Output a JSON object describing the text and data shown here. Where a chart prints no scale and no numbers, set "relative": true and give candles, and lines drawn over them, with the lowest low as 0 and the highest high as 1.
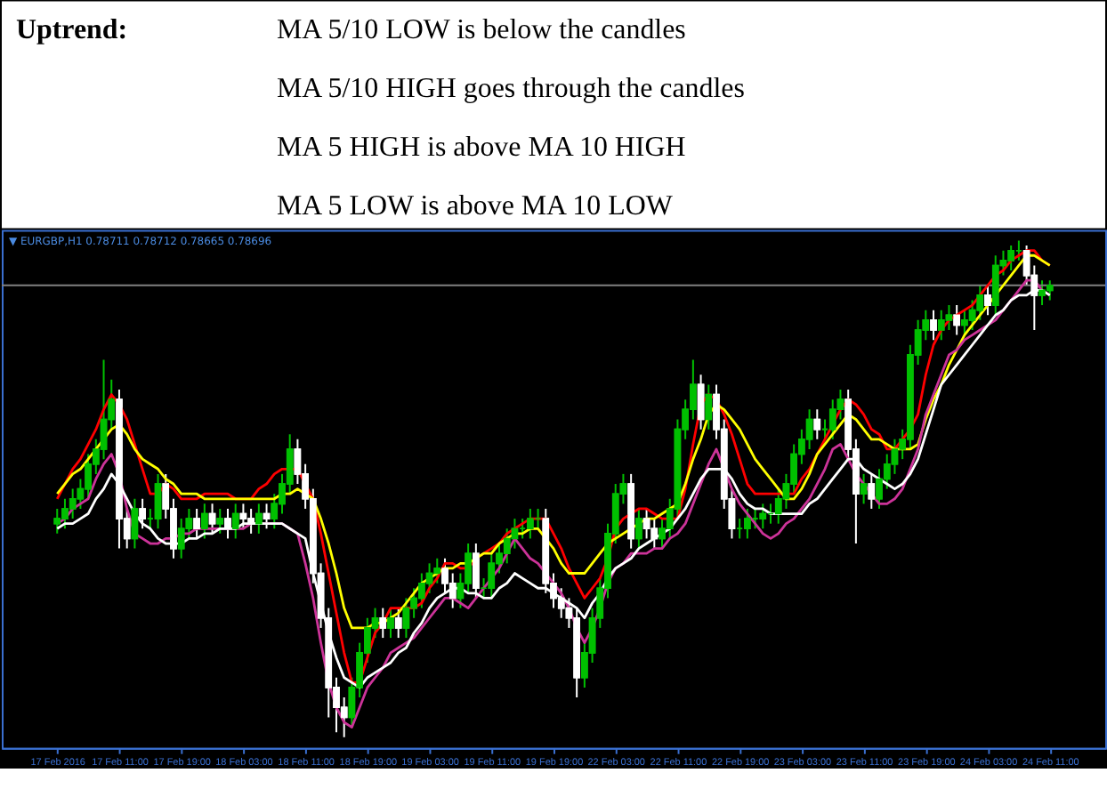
{
  "chart_data": {
    "type": "candlestick",
    "title": "Uptrend:",
    "annotations": [
      "MA 5/10 LOW is below the candles",
      "MA 5/10 HIGH goes through the candles",
      "MA 5 HIGH is above MA 10 HIGH",
      "MA 5 LOW is above MA 10 LOW",
      "▼ EURGBP,H1  0.78711 0.78712 0.78665 0.78696"
    ],
    "relative": true,
    "grid": false,
    "marker": "none",
    "line_style": "solid",
    "colors": [
      "#00c000",
      "#00c000",
      "#00c000",
      "#00c000",
      "#00c000",
      "#00c000",
      "#00c000",
      "#00c000",
      "#ffffff",
      "#ffffff",
      "#00c000",
      "#ffffff",
      "#00c000",
      "#00c000",
      "#ffffff",
      "#ffffff",
      "#00c000",
      "#00c000",
      "#ffffff",
      "#00c000",
      "#ffffff",
      "#00c000",
      "#ffffff",
      "#00c000",
      "#ffffff",
      "#ffffff",
      "#00c000",
      "#ffffff",
      "#00c000",
      "#00c000",
      "#00c000",
      "#ffffff",
      "#ffffff",
      "#ffffff",
      "#ffffff",
      "#ffffff",
      "#ffffff",
      "#ffffff",
      "#00c000",
      "#00c000",
      "#00c000",
      "#00c000",
      "#ffffff",
      "#00c000",
      "#ffffff",
      "#00c000",
      "#00c000",
      "#00c000",
      "#00c000",
      "#00c000",
      "#ffffff",
      "#ffffff",
      "#00c000",
      "#00c000",
      "#ffffff",
      "#00c000",
      "#00c000",
      "#00c000",
      "#00c000",
      "#00c000",
      "#00c000",
      "#00c000",
      "#00c000",
      "#ffffff",
      "#ffffff",
      "#ffffff",
      "#ffffff",
      "#ffffff",
      "#00c000",
      "#00c000",
      "#00c000",
      "#00c000",
      "#00c000",
      "#00c000",
      "#ffffff",
      "#00c000",
      "#ffffff",
      "#ffffff",
      "#00c000",
      "#00c000",
      "#00c000",
      "#00c000",
      "#00c000",
      "#ffffff",
      "#00c000",
      "#ffffff",
      "#ffffff",
      "#ffffff",
      "#00c000",
      "#00c000",
      "#00c000",
      "#00c000",
      "#00c000",
      "#00c000",
      "#00c000",
      "#00c000",
      "#00c000",
      "#00c000",
      "#ffffff",
      "#00c000",
      "#00c000",
      "#00c000",
      "#ffffff",
      "#ffffff",
      "#00c000",
      "#ffffff",
      "#00c000",
      "#00c000",
      "#00c000",
      "#00c000",
      "#00c000",
      "#00c000",
      "#00c000",
      "#ffffff",
      "#00c000",
      "#00c000",
      "#ffffff",
      "#00c000",
      "#00c000",
      "#00c000",
      "#ffffff",
      "#00c000",
      "#00c000",
      "#00c000",
      "#00c000",
      "#ffffff",
      "#ffffff",
      "#00c000",
      "#00c000"
    ],
    "categories": [
      "17 Feb 2016",
      null,
      null,
      null,
      null,
      null,
      null,
      null,
      "17 Feb 11:00",
      null,
      null,
      null,
      null,
      null,
      null,
      null,
      "17 Feb 19:00",
      null,
      null,
      null,
      null,
      null,
      null,
      null,
      "18 Feb 03:00",
      null,
      null,
      null,
      null,
      null,
      null,
      null,
      "18 Feb 11:00",
      null,
      null,
      null,
      null,
      null,
      null,
      null,
      "18 Feb 19:00",
      null,
      null,
      null,
      null,
      null,
      null,
      null,
      "19 Feb 03:00",
      null,
      null,
      null,
      null,
      null,
      null,
      null,
      "19 Feb 11:00",
      null,
      null,
      null,
      null,
      null,
      null,
      null,
      "19 Feb 19:00",
      null,
      null,
      null,
      null,
      null,
      null,
      null,
      "22 Feb 03:00",
      null,
      null,
      null,
      null,
      null,
      null,
      null,
      "22 Feb 11:00",
      null,
      null,
      null,
      null,
      null,
      null,
      null,
      "22 Feb 19:00",
      null,
      null,
      null,
      null,
      null,
      null,
      null,
      "23 Feb 03:00",
      null,
      null,
      null,
      null,
      null,
      null,
      null,
      "23 Feb 11:00",
      null,
      null,
      null,
      null,
      null,
      null,
      null,
      "23 Feb 19:00",
      null,
      null,
      null,
      null,
      null,
      null,
      null,
      "24 Feb 03:00",
      null,
      null,
      null,
      null,
      null,
      null,
      null,
      "24 Feb 11:00"
    ],
    "ref_lines": [
      {
        "axis": "y",
        "value": 0.91,
        "color": "#808080"
      }
    ],
    "ohlc": [
      [
        0.43,
        0.46,
        0.41,
        0.44
      ],
      [
        0.44,
        0.48,
        0.42,
        0.46
      ],
      [
        0.46,
        0.5,
        0.44,
        0.48
      ],
      [
        0.48,
        0.52,
        0.46,
        0.5
      ],
      [
        0.5,
        0.57,
        0.48,
        0.55
      ],
      [
        0.55,
        0.6,
        0.53,
        0.58
      ],
      [
        0.58,
        0.76,
        0.56,
        0.64
      ],
      [
        0.64,
        0.72,
        0.62,
        0.68
      ],
      [
        0.68,
        0.7,
        0.38,
        0.44
      ],
      [
        0.44,
        0.46,
        0.38,
        0.4
      ],
      [
        0.4,
        0.48,
        0.38,
        0.46
      ],
      [
        0.46,
        0.48,
        0.42,
        0.44
      ],
      [
        0.44,
        0.46,
        0.42,
        0.44
      ],
      [
        0.44,
        0.53,
        0.42,
        0.51
      ],
      [
        0.51,
        0.53,
        0.44,
        0.46
      ],
      [
        0.46,
        0.48,
        0.36,
        0.38
      ],
      [
        0.38,
        0.44,
        0.36,
        0.42
      ],
      [
        0.42,
        0.46,
        0.4,
        0.44
      ],
      [
        0.44,
        0.46,
        0.4,
        0.42
      ],
      [
        0.42,
        0.47,
        0.4,
        0.45
      ],
      [
        0.45,
        0.47,
        0.41,
        0.43
      ],
      [
        0.43,
        0.46,
        0.41,
        0.44
      ],
      [
        0.44,
        0.46,
        0.4,
        0.42
      ],
      [
        0.42,
        0.47,
        0.4,
        0.45
      ],
      [
        0.45,
        0.47,
        0.42,
        0.44
      ],
      [
        0.44,
        0.46,
        0.41,
        0.43
      ],
      [
        0.43,
        0.47,
        0.41,
        0.45
      ],
      [
        0.45,
        0.47,
        0.42,
        0.44
      ],
      [
        0.44,
        0.49,
        0.42,
        0.47
      ],
      [
        0.47,
        0.53,
        0.45,
        0.51
      ],
      [
        0.51,
        0.61,
        0.49,
        0.58
      ],
      [
        0.58,
        0.6,
        0.51,
        0.53
      ],
      [
        0.53,
        0.55,
        0.46,
        0.48
      ],
      [
        0.48,
        0.5,
        0.31,
        0.33
      ],
      [
        0.33,
        0.35,
        0.22,
        0.24
      ],
      [
        0.24,
        0.26,
        0.04,
        0.1
      ],
      [
        0.1,
        0.12,
        0.01,
        0.06
      ],
      [
        0.06,
        0.08,
        0,
        0.04
      ],
      [
        0.04,
        0.12,
        0.02,
        0.1
      ],
      [
        0.1,
        0.19,
        0.08,
        0.17
      ],
      [
        0.17,
        0.24,
        0.15,
        0.22
      ],
      [
        0.22,
        0.26,
        0.2,
        0.24
      ],
      [
        0.24,
        0.26,
        0.2,
        0.22
      ],
      [
        0.22,
        0.26,
        0.2,
        0.24
      ],
      [
        0.24,
        0.26,
        0.2,
        0.22
      ],
      [
        0.22,
        0.28,
        0.2,
        0.26
      ],
      [
        0.26,
        0.3,
        0.24,
        0.28
      ],
      [
        0.28,
        0.33,
        0.26,
        0.31
      ],
      [
        0.31,
        0.35,
        0.29,
        0.33
      ],
      [
        0.33,
        0.36,
        0.31,
        0.34
      ],
      [
        0.34,
        0.36,
        0.29,
        0.31
      ],
      [
        0.31,
        0.33,
        0.26,
        0.28
      ],
      [
        0.28,
        0.33,
        0.26,
        0.31
      ],
      [
        0.31,
        0.39,
        0.29,
        0.37
      ],
      [
        0.37,
        0.39,
        0.28,
        0.3
      ],
      [
        0.3,
        0.32,
        0.28,
        0.3
      ],
      [
        0.3,
        0.37,
        0.28,
        0.35
      ],
      [
        0.35,
        0.39,
        0.33,
        0.37
      ],
      [
        0.37,
        0.42,
        0.35,
        0.4
      ],
      [
        0.4,
        0.44,
        0.38,
        0.42
      ],
      [
        0.42,
        0.44,
        0.4,
        0.42
      ],
      [
        0.42,
        0.46,
        0.4,
        0.44
      ],
      [
        0.44,
        0.46,
        0.42,
        0.44
      ],
      [
        0.44,
        0.46,
        0.29,
        0.31
      ],
      [
        0.31,
        0.33,
        0.26,
        0.28
      ],
      [
        0.28,
        0.3,
        0.24,
        0.26
      ],
      [
        0.26,
        0.28,
        0.22,
        0.24
      ],
      [
        0.24,
        0.26,
        0.08,
        0.12
      ],
      [
        0.12,
        0.19,
        0.1,
        0.17
      ],
      [
        0.17,
        0.26,
        0.15,
        0.24
      ],
      [
        0.24,
        0.32,
        0.22,
        0.3
      ],
      [
        0.3,
        0.43,
        0.28,
        0.41
      ],
      [
        0.41,
        0.51,
        0.39,
        0.49
      ],
      [
        0.49,
        0.53,
        0.47,
        0.51
      ],
      [
        0.51,
        0.53,
        0.38,
        0.4
      ],
      [
        0.4,
        0.46,
        0.38,
        0.44
      ],
      [
        0.44,
        0.46,
        0.4,
        0.42
      ],
      [
        0.42,
        0.44,
        0.38,
        0.4
      ],
      [
        0.4,
        0.44,
        0.38,
        0.42
      ],
      [
        0.42,
        0.48,
        0.4,
        0.46
      ],
      [
        0.46,
        0.64,
        0.44,
        0.62
      ],
      [
        0.62,
        0.68,
        0.6,
        0.66
      ],
      [
        0.66,
        0.76,
        0.64,
        0.71
      ],
      [
        0.71,
        0.73,
        0.62,
        0.64
      ],
      [
        0.64,
        0.71,
        0.62,
        0.69
      ],
      [
        0.69,
        0.71,
        0.6,
        0.62
      ],
      [
        0.62,
        0.64,
        0.46,
        0.48
      ],
      [
        0.48,
        0.5,
        0.4,
        0.42
      ],
      [
        0.42,
        0.44,
        0.4,
        0.42
      ],
      [
        0.42,
        0.46,
        0.4,
        0.44
      ],
      [
        0.44,
        0.46,
        0.42,
        0.44
      ],
      [
        0.44,
        0.47,
        0.42,
        0.45
      ],
      [
        0.45,
        0.47,
        0.43,
        0.45
      ],
      [
        0.45,
        0.5,
        0.43,
        0.48
      ],
      [
        0.48,
        0.53,
        0.46,
        0.51
      ],
      [
        0.51,
        0.59,
        0.49,
        0.57
      ],
      [
        0.57,
        0.62,
        0.55,
        0.6
      ],
      [
        0.6,
        0.66,
        0.58,
        0.64
      ],
      [
        0.64,
        0.66,
        0.6,
        0.62
      ],
      [
        0.62,
        0.64,
        0.6,
        0.62
      ],
      [
        0.62,
        0.68,
        0.6,
        0.66
      ],
      [
        0.66,
        0.7,
        0.64,
        0.68
      ],
      [
        0.68,
        0.7,
        0.56,
        0.58
      ],
      [
        0.58,
        0.6,
        0.39,
        0.49
      ],
      [
        0.49,
        0.53,
        0.47,
        0.51
      ],
      [
        0.51,
        0.53,
        0.46,
        0.48
      ],
      [
        0.48,
        0.54,
        0.46,
        0.52
      ],
      [
        0.52,
        0.57,
        0.5,
        0.55
      ],
      [
        0.55,
        0.6,
        0.53,
        0.58
      ],
      [
        0.58,
        0.62,
        0.56,
        0.6
      ],
      [
        0.6,
        0.79,
        0.58,
        0.77
      ],
      [
        0.77,
        0.84,
        0.75,
        0.82
      ],
      [
        0.82,
        0.86,
        0.8,
        0.84
      ],
      [
        0.84,
        0.86,
        0.8,
        0.82
      ],
      [
        0.82,
        0.86,
        0.8,
        0.84
      ],
      [
        0.84,
        0.87,
        0.82,
        0.85
      ],
      [
        0.85,
        0.87,
        0.81,
        0.83
      ],
      [
        0.83,
        0.86,
        0.81,
        0.84
      ],
      [
        0.84,
        0.88,
        0.82,
        0.86
      ],
      [
        0.86,
        0.91,
        0.84,
        0.89
      ],
      [
        0.89,
        0.91,
        0.85,
        0.87
      ],
      [
        0.87,
        0.97,
        0.85,
        0.95
      ],
      [
        0.95,
        0.98,
        0.93,
        0.96
      ],
      [
        0.96,
        0.99,
        0.94,
        0.98
      ],
      [
        0.98,
        1,
        0.96,
        0.98
      ],
      [
        0.98,
        0.99,
        0.91,
        0.93
      ],
      [
        0.93,
        0.95,
        0.82,
        0.89
      ],
      [
        0.89,
        0.92,
        0.87,
        0.9
      ],
      [
        0.9,
        0.92,
        0.88,
        0.91
      ]
    ],
    "series": [
      {
        "type": "line",
        "color": "#ff0000",
        "values": [
          0.48,
          0.51,
          0.54,
          0.56,
          0.59,
          0.62,
          0.66,
          0.69,
          0.67,
          0.64,
          0.59,
          0.54,
          0.49,
          0.49,
          0.51,
          0.5,
          0.48,
          0.48,
          0.48,
          0.49,
          0.49,
          0.49,
          0.49,
          0.48,
          0.48,
          0.48,
          0.5,
          0.51,
          0.53,
          0.54,
          0.54,
          0.54,
          0.51,
          0.48,
          0.41,
          0.33,
          0.25,
          0.17,
          0.11,
          0.11,
          0.16,
          0.21,
          0.23,
          0.26,
          0.26,
          0.26,
          0.26,
          0.27,
          0.3,
          0.32,
          0.35,
          0.35,
          0.34,
          0.34,
          0.36,
          0.37,
          0.38,
          0.39,
          0.41,
          0.42,
          0.43,
          0.44,
          0.44,
          0.44,
          0.41,
          0.38,
          0.34,
          0.31,
          0.28,
          0.3,
          0.32,
          0.36,
          0.42,
          0.44,
          0.45,
          0.46,
          0.46,
          0.45,
          0.44,
          0.44,
          0.44,
          0.5,
          0.59,
          0.67,
          0.69,
          0.68,
          0.65,
          0.61,
          0.56,
          0.51,
          0.49,
          0.49,
          0.49,
          0.49,
          0.49,
          0.49,
          0.52,
          0.54,
          0.57,
          0.6,
          0.63,
          0.66,
          0.68,
          0.67,
          0.65,
          0.62,
          0.61,
          0.58,
          0.58,
          0.6,
          0.62,
          0.65,
          0.73,
          0.79,
          0.82,
          0.84,
          0.85,
          0.86,
          0.87,
          0.89,
          0.91,
          0.93,
          0.94,
          0.96,
          0.97,
          0.98,
          0.98,
          0.96,
          0.95
        ]
      },
      {
        "type": "line",
        "color": "#ffff00",
        "values": [
          0.49,
          0.51,
          0.53,
          0.54,
          0.56,
          0.58,
          0.6,
          0.62,
          0.63,
          0.61,
          0.58,
          0.56,
          0.55,
          0.54,
          0.52,
          0.51,
          0.49,
          0.49,
          0.49,
          0.48,
          0.48,
          0.48,
          0.48,
          0.48,
          0.48,
          0.48,
          0.48,
          0.48,
          0.48,
          0.49,
          0.49,
          0.5,
          0.49,
          0.48,
          0.44,
          0.39,
          0.33,
          0.26,
          0.22,
          0.22,
          0.22,
          0.23,
          0.23,
          0.24,
          0.25,
          0.27,
          0.29,
          0.31,
          0.32,
          0.33,
          0.34,
          0.34,
          0.35,
          0.35,
          0.36,
          0.37,
          0.37,
          0.39,
          0.4,
          0.41,
          0.41,
          0.42,
          0.42,
          0.4,
          0.38,
          0.35,
          0.33,
          0.33,
          0.33,
          0.35,
          0.37,
          0.39,
          0.4,
          0.41,
          0.42,
          0.43,
          0.44,
          0.44,
          0.45,
          0.46,
          0.47,
          0.51,
          0.56,
          0.6,
          0.65,
          0.67,
          0.66,
          0.64,
          0.62,
          0.59,
          0.56,
          0.54,
          0.52,
          0.5,
          0.48,
          0.48,
          0.5,
          0.53,
          0.57,
          0.59,
          0.61,
          0.63,
          0.65,
          0.64,
          0.62,
          0.6,
          0.6,
          0.59,
          0.58,
          0.58,
          0.58,
          0.59,
          0.64,
          0.68,
          0.71,
          0.75,
          0.78,
          0.81,
          0.83,
          0.85,
          0.87,
          0.89,
          0.91,
          0.93,
          0.95,
          0.97,
          0.97,
          0.96,
          0.95
        ]
      },
      {
        "type": "line",
        "color": "#cc3399",
        "values": [
          0.43,
          0.44,
          0.46,
          0.47,
          0.48,
          0.52,
          0.55,
          0.57,
          0.53,
          0.46,
          0.41,
          0.4,
          0.39,
          0.39,
          0.4,
          0.4,
          0.41,
          0.41,
          0.42,
          0.42,
          0.42,
          0.42,
          0.42,
          0.42,
          0.42,
          0.43,
          0.43,
          0.43,
          0.43,
          0.43,
          0.42,
          0.41,
          0.35,
          0.28,
          0.19,
          0.11,
          0.06,
          0.03,
          0.02,
          0.06,
          0.1,
          0.12,
          0.14,
          0.17,
          0.18,
          0.19,
          0.2,
          0.22,
          0.24,
          0.26,
          0.28,
          0.28,
          0.27,
          0.26,
          0.28,
          0.3,
          0.32,
          0.34,
          0.37,
          0.4,
          0.38,
          0.36,
          0.35,
          0.33,
          0.31,
          0.29,
          0.26,
          0.22,
          0.19,
          0.22,
          0.26,
          0.31,
          0.34,
          0.35,
          0.37,
          0.37,
          0.37,
          0.38,
          0.38,
          0.4,
          0.41,
          0.43,
          0.47,
          0.51,
          0.55,
          0.58,
          0.54,
          0.5,
          0.47,
          0.45,
          0.43,
          0.41,
          0.4,
          0.41,
          0.43,
          0.44,
          0.46,
          0.48,
          0.51,
          0.54,
          0.58,
          0.59,
          0.56,
          0.53,
          0.51,
          0.49,
          0.47,
          0.47,
          0.48,
          0.5,
          0.54,
          0.58,
          0.65,
          0.69,
          0.73,
          0.77,
          0.78,
          0.8,
          0.81,
          0.82,
          0.83,
          0.84,
          0.86,
          0.88,
          0.9,
          0.92,
          0.92,
          0.9,
          0.89
        ]
      },
      {
        "type": "line",
        "color": "#ffffff",
        "values": [
          0.42,
          0.43,
          0.43,
          0.44,
          0.45,
          0.48,
          0.5,
          0.53,
          0.51,
          0.48,
          0.45,
          0.43,
          0.42,
          0.4,
          0.39,
          0.39,
          0.39,
          0.4,
          0.4,
          0.41,
          0.41,
          0.42,
          0.42,
          0.42,
          0.43,
          0.43,
          0.43,
          0.43,
          0.43,
          0.43,
          0.42,
          0.41,
          0.4,
          0.33,
          0.27,
          0.21,
          0.16,
          0.12,
          0.11,
          0.1,
          0.12,
          0.13,
          0.14,
          0.15,
          0.17,
          0.18,
          0.21,
          0.23,
          0.26,
          0.28,
          0.29,
          0.3,
          0.3,
          0.29,
          0.29,
          0.28,
          0.28,
          0.3,
          0.31,
          0.33,
          0.32,
          0.31,
          0.3,
          0.3,
          0.29,
          0.28,
          0.27,
          0.26,
          0.24,
          0.27,
          0.29,
          0.32,
          0.34,
          0.35,
          0.36,
          0.38,
          0.39,
          0.4,
          0.41,
          0.42,
          0.44,
          0.46,
          0.49,
          0.52,
          0.54,
          0.54,
          0.54,
          0.52,
          0.49,
          0.47,
          0.46,
          0.46,
          0.45,
          0.45,
          0.45,
          0.45,
          0.45,
          0.47,
          0.48,
          0.5,
          0.52,
          0.54,
          0.56,
          0.56,
          0.54,
          0.53,
          0.52,
          0.51,
          0.5,
          0.51,
          0.53,
          0.56,
          0.61,
          0.66,
          0.71,
          0.73,
          0.75,
          0.77,
          0.79,
          0.81,
          0.83,
          0.85,
          0.86,
          0.88,
          0.89,
          0.89,
          0.9,
          0.9,
          0.89
        ]
      }
    ]
  }
}
